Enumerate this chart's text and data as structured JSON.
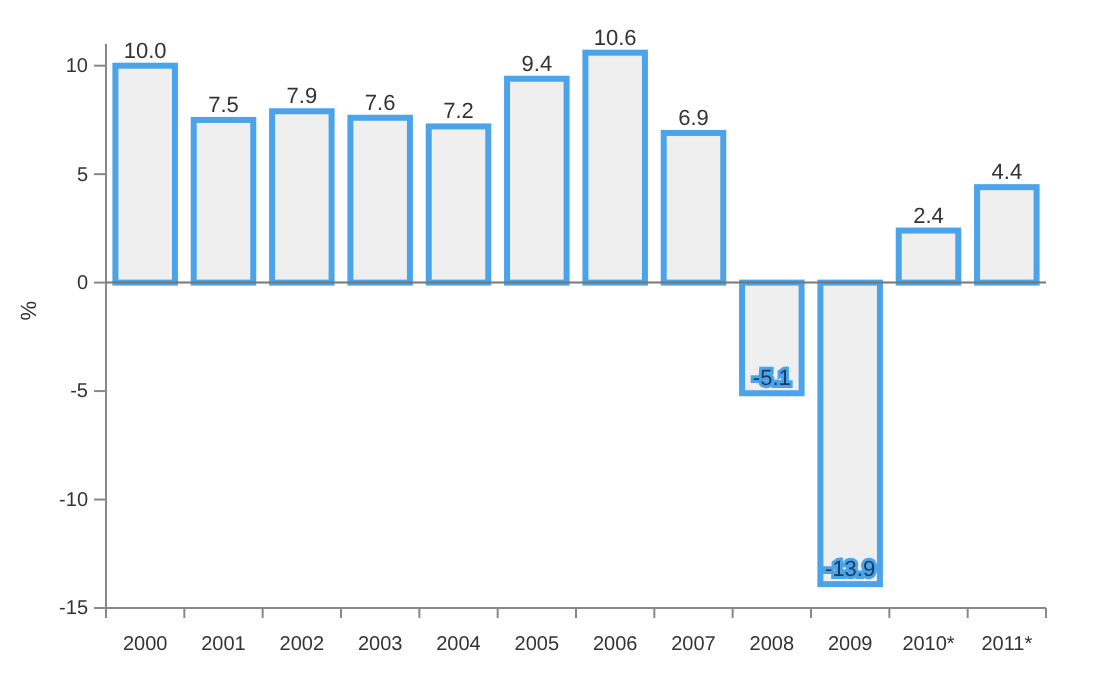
{
  "chart_data": {
    "type": "bar",
    "ylabel": "%",
    "categories": [
      "2000",
      "2001",
      "2002",
      "2003",
      "2004",
      "2005",
      "2006",
      "2007",
      "2008",
      "2009",
      "2010*",
      "2011*"
    ],
    "values": [
      10.0,
      7.5,
      7.9,
      7.6,
      7.2,
      9.4,
      10.6,
      6.9,
      -5.1,
      -13.9,
      2.4,
      4.4
    ],
    "value_labels": [
      "10.0",
      "7.5",
      "7.9",
      "7.6",
      "7.2",
      "9.4",
      "10.6",
      "6.9",
      "-5.1",
      "-13.9",
      "2.4",
      "4.4"
    ],
    "color": "#4ba3ea",
    "ylim": [
      -15,
      11
    ],
    "yticks": [
      -15,
      -10,
      -5,
      0,
      5,
      10
    ],
    "ref_lines": [
      {
        "axis": "y",
        "value": 0,
        "color": "#777777"
      }
    ]
  }
}
